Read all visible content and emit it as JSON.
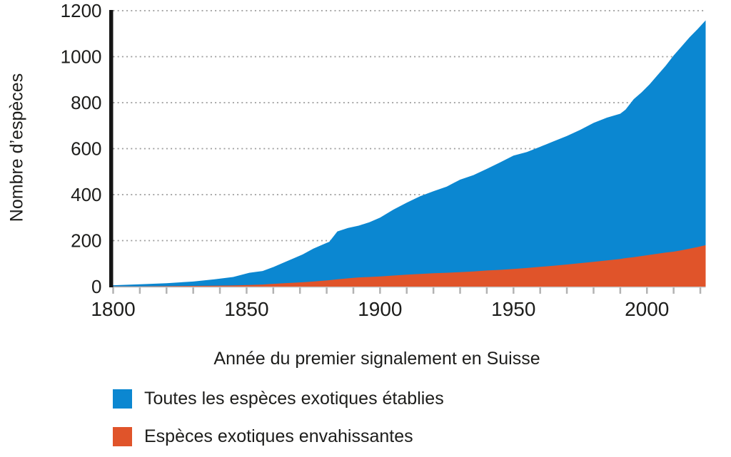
{
  "colors": {
    "background": "#ffffff",
    "text": "#1d1d1b",
    "grid": "#9b9b9b",
    "tick": "#b3b3b3",
    "axis_line": "#141414",
    "baseline": "#c9c9c9",
    "series_blue": "#0b87d1",
    "series_orange": "#e0542a"
  },
  "chart_data": {
    "type": "area",
    "title": "",
    "xlabel": "Année du premier signalement en Suisse",
    "ylabel": "Nombre d’espèces",
    "xlim": [
      1800,
      2022
    ],
    "ylim": [
      0,
      1200
    ],
    "y_ticks": [
      0,
      200,
      400,
      600,
      800,
      1000,
      1200
    ],
    "x_tick_labels": [
      1800,
      1850,
      1900,
      1950,
      2000
    ],
    "x_minor_tick_start": 1800,
    "x_minor_tick_end": 2020,
    "x_minor_tick_step": 10,
    "grid": "dotted-horizontal",
    "legend_position": "bottom-left",
    "x": [
      1800,
      1810,
      1820,
      1830,
      1838,
      1845,
      1851,
      1856,
      1860,
      1864,
      1868,
      1871,
      1875,
      1879,
      1881,
      1884,
      1888,
      1892,
      1896,
      1900,
      1905,
      1910,
      1915,
      1920,
      1925,
      1930,
      1935,
      1940,
      1945,
      1950,
      1955,
      1960,
      1965,
      1970,
      1975,
      1980,
      1985,
      1990,
      1992,
      1995,
      1998,
      2001,
      2004,
      2007,
      2010,
      2013,
      2016,
      2019,
      2022
    ],
    "series": [
      {
        "name": "Toutes les espèces exotiques établies",
        "color": "#0b87d1",
        "values": [
          6,
          10,
          15,
          22,
          32,
          42,
          60,
          68,
          85,
          105,
          125,
          140,
          165,
          185,
          195,
          240,
          255,
          265,
          280,
          300,
          335,
          365,
          393,
          415,
          435,
          465,
          485,
          512,
          540,
          570,
          585,
          608,
          632,
          655,
          682,
          712,
          735,
          752,
          770,
          815,
          845,
          880,
          920,
          960,
          1005,
          1045,
          1085,
          1120,
          1158
        ]
      },
      {
        "name": "Espèces exotiques envahissantes",
        "color": "#e0542a",
        "values": [
          1,
          1,
          2,
          3,
          4,
          5,
          7,
          9,
          12,
          15,
          17,
          19,
          22,
          26,
          28,
          32,
          36,
          40,
          42,
          44,
          48,
          52,
          55,
          58,
          60,
          63,
          66,
          70,
          73,
          77,
          81,
          86,
          91,
          96,
          102,
          108,
          114,
          120,
          124,
          128,
          133,
          138,
          143,
          148,
          152,
          158,
          165,
          172,
          180
        ]
      }
    ]
  }
}
